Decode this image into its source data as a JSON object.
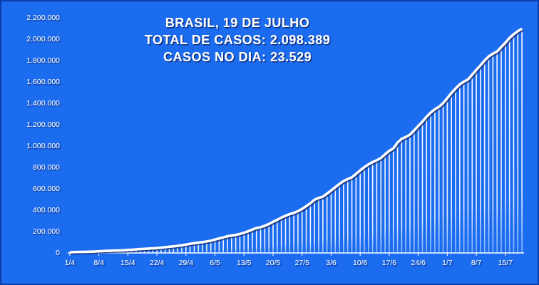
{
  "chart_data": {
    "type": "bar",
    "title": [
      "BRASIL,  19 DE JULHO",
      "TOTAL DE CASOS: 2.098.389",
      "CASOS NO DIA: 23.529"
    ],
    "categories": [
      "1/4",
      null,
      null,
      null,
      null,
      null,
      null,
      "8/4",
      null,
      null,
      null,
      null,
      null,
      null,
      "15/4",
      null,
      null,
      null,
      null,
      null,
      null,
      "22/4",
      null,
      null,
      null,
      null,
      null,
      null,
      "29/4",
      null,
      null,
      null,
      null,
      null,
      null,
      "6/5",
      null,
      null,
      null,
      null,
      null,
      null,
      "13/5",
      null,
      null,
      null,
      null,
      null,
      null,
      "20/5",
      null,
      null,
      null,
      null,
      null,
      null,
      "27/5",
      null,
      null,
      null,
      null,
      null,
      null,
      "3/6",
      null,
      null,
      null,
      null,
      null,
      null,
      "10/6",
      null,
      null,
      null,
      null,
      null,
      null,
      "17/6",
      null,
      null,
      null,
      null,
      null,
      null,
      "24/6",
      null,
      null,
      null,
      null,
      null,
      null,
      "1/7",
      null,
      null,
      null,
      null,
      null,
      null,
      "8/7",
      null,
      null,
      null,
      null,
      null,
      null,
      "15/7",
      null,
      null,
      null,
      null
    ],
    "values": [
      6836,
      8044,
      9056,
      10278,
      11130,
      12056,
      13717,
      15927,
      17857,
      19638,
      20727,
      22169,
      23430,
      25262,
      28320,
      30425,
      33682,
      36599,
      38654,
      40581,
      43079,
      45757,
      49492,
      52995,
      58509,
      61888,
      66501,
      71886,
      78162,
      85380,
      91589,
      96559,
      101147,
      107780,
      114715,
      125218,
      135106,
      145328,
      155939,
      162699,
      168331,
      177589,
      188974,
      202918,
      218223,
      233142,
      241080,
      254220,
      271628,
      291579,
      310087,
      330890,
      347398,
      363211,
      374898,
      391222,
      411821,
      438238,
      465166,
      498440,
      514849,
      526447,
      555383,
      584016,
      614941,
      645771,
      672846,
      691758,
      707412,
      739503,
      772416,
      802828,
      828810,
      850514,
      867624,
      888271,
      923189,
      955377,
      978142,
      1032913,
      1067579,
      1085038,
      1106470,
      1145906,
      1188631,
      1228114,
      1274974,
      1313667,
      1344143,
      1368195,
      1402041,
      1448753,
      1496858,
      1539081,
      1577004,
      1603055,
      1623284,
      1668589,
      1713160,
      1755779,
      1800827,
      1839850,
      1864681,
      1884967,
      1926824,
      1966748,
      2012151,
      2046328,
      2074860,
      2098389
    ],
    "color": "#ffffff",
    "line": true,
    "ylim": [
      0,
      2200000
    ],
    "yticks": [
      0,
      {
        "value": 200000,
        "label": "200.000"
      },
      {
        "value": 400000,
        "label": "400.000"
      },
      {
        "value": 600000,
        "label": "600.000"
      },
      {
        "value": 800000,
        "label": "800.000"
      },
      {
        "value": 1000000,
        "label": "1.000.000"
      },
      {
        "value": 1200000,
        "label": "1.200.000"
      },
      {
        "value": 1400000,
        "label": "1.400.000"
      },
      {
        "value": 1600000,
        "label": "1.600.000"
      },
      {
        "value": 1800000,
        "label": "1.800.000"
      },
      {
        "value": 2000000,
        "label": "2.000.000"
      },
      {
        "value": 2200000,
        "label": "2.200.000"
      }
    ]
  }
}
